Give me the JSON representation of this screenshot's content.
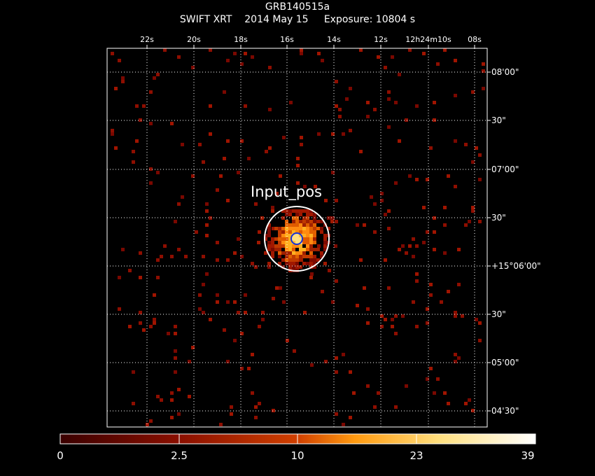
{
  "header": {
    "object": "GRB140515a",
    "instrument": "SWIFT XRT",
    "date": "2014 May 15",
    "exposure": "Exposure: 10804 s"
  },
  "ra_axis": [
    "22s",
    "20s",
    "18s",
    "16s",
    "14s",
    "12s",
    "12h24m10s",
    "08s"
  ],
  "dec_axis": [
    "08'00\"",
    "30\"",
    "07'00\"",
    "30\"",
    "+15°06'00\"",
    "30\"",
    "05'00\"",
    "04'30\""
  ],
  "source_label": "Input_pos",
  "colorbar": {
    "ticks": [
      "0",
      "2.5",
      "10",
      "23",
      "39"
    ],
    "colors": [
      "#3a0000",
      "#8a0f00",
      "#d04000",
      "#ff9a10",
      "#ffe080",
      "#ffffff"
    ]
  },
  "colors": {
    "grid": "#ffffff",
    "circle": "#ffffff",
    "marker": "#1530d8"
  }
}
